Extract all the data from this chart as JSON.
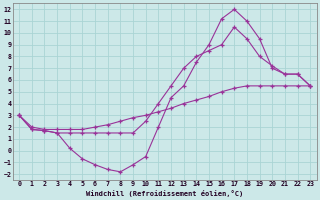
{
  "bg_color": "#cce8e8",
  "grid_color": "#aad4d4",
  "line_color": "#993399",
  "xlabel": "Windchill (Refroidissement éolien,°C)",
  "xlim": [
    -0.5,
    23.5
  ],
  "ylim": [
    -2.5,
    12.5
  ],
  "xticks": [
    0,
    1,
    2,
    3,
    4,
    5,
    6,
    7,
    8,
    9,
    10,
    11,
    12,
    13,
    14,
    15,
    16,
    17,
    18,
    19,
    20,
    21,
    22,
    23
  ],
  "yticks": [
    -2,
    -1,
    0,
    1,
    2,
    3,
    4,
    5,
    6,
    7,
    8,
    9,
    10,
    11,
    12
  ],
  "curve1_x": [
    0,
    1,
    2,
    3,
    4,
    5,
    6,
    7,
    8,
    9,
    10,
    11,
    12,
    13,
    14,
    15,
    16,
    17,
    18,
    19,
    20,
    21,
    22,
    23
  ],
  "curve1_y": [
    3.0,
    1.8,
    1.7,
    1.5,
    0.2,
    -0.7,
    -1.2,
    -1.6,
    -1.8,
    -1.2,
    -0.5,
    2.0,
    4.5,
    5.5,
    7.5,
    9.0,
    11.2,
    12.0,
    11.0,
    9.5,
    7.0,
    6.5,
    6.5,
    5.5
  ],
  "curve2_x": [
    0,
    1,
    2,
    3,
    4,
    5,
    6,
    7,
    8,
    9,
    10,
    11,
    12,
    13,
    14,
    15,
    16,
    17,
    18,
    19,
    20,
    21,
    22,
    23
  ],
  "curve2_y": [
    3.0,
    1.8,
    1.7,
    1.5,
    1.5,
    1.5,
    1.5,
    1.5,
    1.5,
    1.5,
    2.5,
    4.0,
    5.5,
    7.0,
    8.0,
    8.5,
    9.0,
    10.5,
    9.5,
    8.0,
    7.2,
    6.5,
    6.5,
    5.5
  ],
  "curve3_x": [
    0,
    1,
    2,
    3,
    4,
    5,
    6,
    7,
    8,
    9,
    10,
    11,
    12,
    13,
    14,
    15,
    16,
    17,
    18,
    19,
    20,
    21,
    22,
    23
  ],
  "curve3_y": [
    3.0,
    2.0,
    1.8,
    1.8,
    1.8,
    1.8,
    2.0,
    2.2,
    2.5,
    2.8,
    3.0,
    3.3,
    3.6,
    4.0,
    4.3,
    4.6,
    5.0,
    5.3,
    5.5,
    5.5,
    5.5,
    5.5,
    5.5,
    5.5
  ]
}
